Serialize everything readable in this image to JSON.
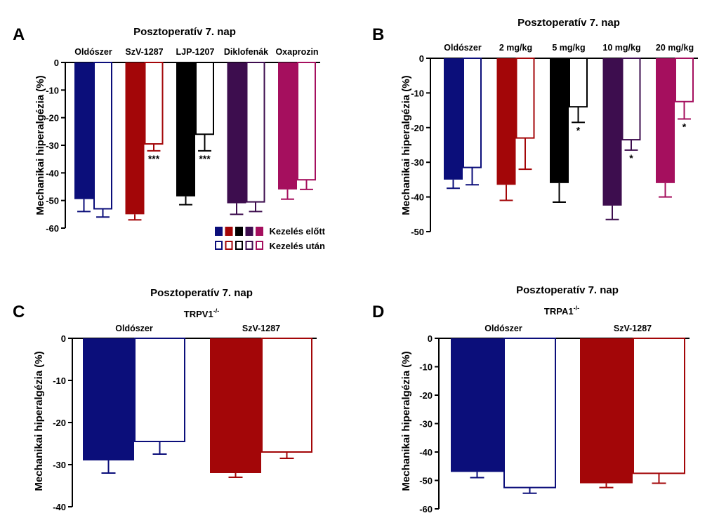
{
  "chart_data": [
    {
      "panel": "A",
      "type": "bar",
      "title": "Posztoperatív 7. nap",
      "ylabel": "Mechanikai hiperalgézia (%)",
      "ylim": [
        -60,
        0
      ],
      "yticks": [
        0,
        -10,
        -20,
        -30,
        -40,
        -50,
        -60
      ],
      "categories": [
        "Oldószer",
        "SzV-1287",
        "LJP-1207",
        "Diklofenák",
        "Oxaprozin"
      ],
      "colors": [
        "#0b0e7a",
        "#a30608",
        "#000000",
        "#3d0d4e",
        "#a50f5e"
      ],
      "series": [
        {
          "name": "Kezelés előtt",
          "values": [
            -49.5,
            -55,
            -48.5,
            -51,
            -46
          ],
          "errors": [
            4.5,
            2,
            3,
            4,
            3.5
          ],
          "significance": [
            "",
            "",
            "",
            "",
            ""
          ]
        },
        {
          "name": "Kezelés után",
          "values": [
            -53,
            -29.5,
            -26,
            -50.5,
            -42.5
          ],
          "errors": [
            3,
            2.5,
            6,
            3.5,
            3.5
          ],
          "significance": [
            "",
            "***",
            "***",
            "",
            ""
          ]
        }
      ],
      "legend": {
        "before": "Kezelés előtt",
        "after": "Kezelés után"
      }
    },
    {
      "panel": "B",
      "type": "bar",
      "title": "Posztoperatív 7. nap",
      "ylabel": "Mechanikai hiperalgézia (%)",
      "ylim": [
        -50,
        0
      ],
      "yticks": [
        0,
        -10,
        -20,
        -30,
        -40,
        -50
      ],
      "categories": [
        "Oldószer",
        "2 mg/kg",
        "5 mg/kg",
        "10 mg/kg",
        "20 mg/kg"
      ],
      "colors": [
        "#0b0e7a",
        "#a30608",
        "#000000",
        "#3d0d4e",
        "#a50f5e"
      ],
      "series": [
        {
          "name": "Kezelés előtt",
          "values": [
            -35,
            -36.5,
            -36,
            -42.5,
            -36
          ],
          "errors": [
            2.5,
            4.5,
            5.5,
            4,
            4
          ],
          "significance": [
            "",
            "",
            "",
            "",
            ""
          ]
        },
        {
          "name": "Kezelés után",
          "values": [
            -31.5,
            -23,
            -14,
            -23.5,
            -12.5
          ],
          "errors": [
            5,
            9,
            4.5,
            3,
            5
          ],
          "significance": [
            "",
            "",
            "*",
            "*",
            "*"
          ]
        }
      ]
    },
    {
      "panel": "C",
      "type": "bar",
      "title": "Posztoperatív 7. nap",
      "subtitle": "TRPV1",
      "subtitle_sup": "-/-",
      "ylabel": "Mechanikai hiperalgézia (%)",
      "ylim": [
        -40,
        0
      ],
      "yticks": [
        0,
        -10,
        -20,
        -30,
        -40
      ],
      "categories": [
        "Oldószer",
        "SzV-1287"
      ],
      "colors": [
        "#0b0e7a",
        "#a30608"
      ],
      "series": [
        {
          "name": "Kezelés előtt",
          "values": [
            -29,
            -32
          ],
          "errors": [
            3,
            1
          ]
        },
        {
          "name": "Kezelés után",
          "values": [
            -24.5,
            -27
          ],
          "errors": [
            3,
            1.5
          ]
        }
      ]
    },
    {
      "panel": "D",
      "type": "bar",
      "title": "Posztoperatív 7. nap",
      "subtitle": "TRPA1",
      "subtitle_sup": "-/-",
      "ylabel": "Mechanikai hiperalgézia (%)",
      "ylim": [
        -60,
        0
      ],
      "yticks": [
        0,
        -10,
        -20,
        -30,
        -40,
        -50,
        -60
      ],
      "categories": [
        "Oldószer",
        "SzV-1287"
      ],
      "colors": [
        "#0b0e7a",
        "#a30608"
      ],
      "series": [
        {
          "name": "Kezelés előtt",
          "values": [
            -47,
            -51
          ],
          "errors": [
            2,
            1.5
          ]
        },
        {
          "name": "Kezelés után",
          "values": [
            -52.5,
            -47.5
          ],
          "errors": [
            2,
            3.5
          ]
        }
      ]
    }
  ]
}
